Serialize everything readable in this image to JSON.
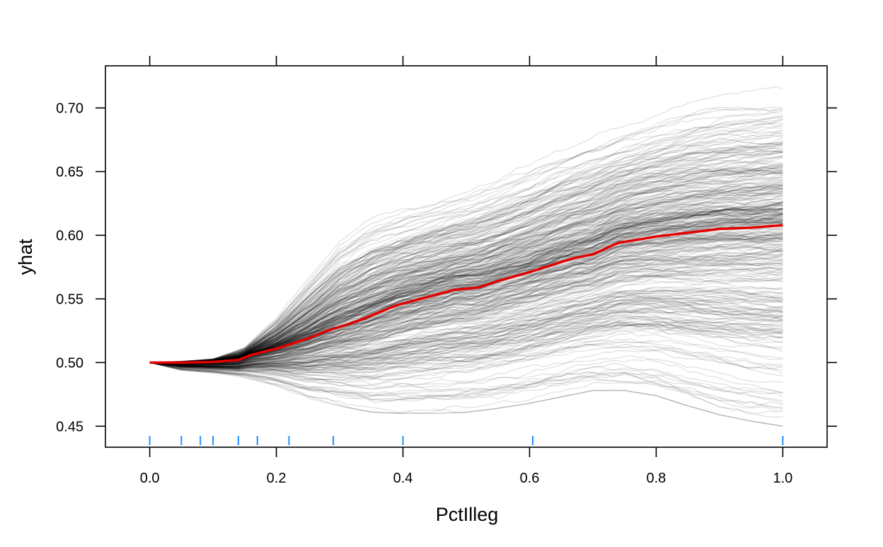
{
  "chart_data": {
    "type": "line",
    "title": "",
    "xlabel": "PctIlleg",
    "ylabel": "yhat",
    "xlim": [
      -0.07,
      1.07
    ],
    "ylim": [
      0.4335,
      0.7331
    ],
    "x_ticks": [
      0.0,
      0.2,
      0.4,
      0.6,
      0.8,
      1.0
    ],
    "x_tick_labels": [
      "0.0",
      "0.2",
      "0.4",
      "0.6",
      "0.8",
      "1.0"
    ],
    "y_ticks": [
      0.45,
      0.5,
      0.55,
      0.6,
      0.65,
      0.7
    ],
    "y_tick_labels": [
      "0.45",
      "0.50",
      "0.55",
      "0.60",
      "0.65",
      "0.70"
    ],
    "grid": false,
    "legend": "none",
    "colors": {
      "average_line": "#e30000",
      "ice_lines": "#000000",
      "rug": "#1f8fff",
      "frame": "#000000"
    },
    "rug_x": [
      0.0,
      0.05,
      0.08,
      0.1,
      0.14,
      0.17,
      0.22,
      0.29,
      0.4,
      0.605,
      1.0
    ],
    "average_curve": {
      "x": [
        0.0,
        0.05,
        0.1,
        0.14,
        0.16,
        0.2,
        0.22,
        0.25,
        0.28,
        0.3,
        0.33,
        0.36,
        0.39,
        0.42,
        0.45,
        0.48,
        0.52,
        0.55,
        0.6,
        0.65,
        0.67,
        0.7,
        0.74,
        0.8,
        0.85,
        0.9,
        0.95,
        1.0
      ],
      "y": [
        0.5,
        0.5,
        0.5005,
        0.502,
        0.506,
        0.511,
        0.514,
        0.519,
        0.525,
        0.528,
        0.533,
        0.539,
        0.545,
        0.549,
        0.553,
        0.557,
        0.559,
        0.564,
        0.571,
        0.579,
        0.582,
        0.585,
        0.594,
        0.599,
        0.602,
        0.605,
        0.606,
        0.608
      ]
    },
    "ice_bundle": {
      "n_curves": 380,
      "start_y": 0.5,
      "x": [
        0.0,
        0.05,
        0.1,
        0.15,
        0.2,
        0.25,
        0.3,
        0.35,
        0.4,
        0.45,
        0.5,
        0.55,
        0.6,
        0.65,
        0.7,
        0.75,
        0.8,
        0.85,
        0.9,
        0.95,
        1.0
      ],
      "upper_envelope": [
        0.5,
        0.501,
        0.503,
        0.512,
        0.535,
        0.565,
        0.595,
        0.612,
        0.62,
        0.628,
        0.636,
        0.645,
        0.656,
        0.668,
        0.678,
        0.687,
        0.696,
        0.704,
        0.709,
        0.712,
        0.715
      ],
      "lower_envelope": [
        0.5,
        0.494,
        0.492,
        0.489,
        0.483,
        0.474,
        0.468,
        0.463,
        0.462,
        0.462,
        0.463,
        0.466,
        0.47,
        0.475,
        0.48,
        0.48,
        0.476,
        0.468,
        0.461,
        0.456,
        0.452
      ]
    }
  }
}
